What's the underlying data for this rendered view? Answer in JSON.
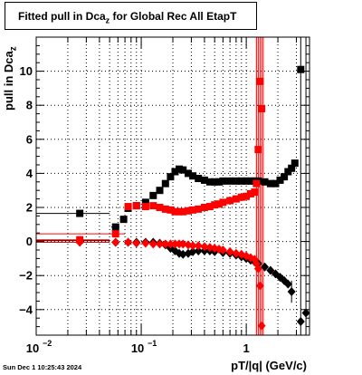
{
  "title": {
    "prefix": "Fitted pull in Dca",
    "subscript": "z",
    "suffix": " for Global Rec All EtapT"
  },
  "timestamp": "Sun Dec  1 10:25:43 2024",
  "chart_data": {
    "type": "scatter",
    "title": "Fitted pull in Dca_z for Global Rec All EtapT",
    "xlabel": "pT/|q| (GeV/c)",
    "ylabel_base": "pull in Dca",
    "ylabel_sub": "z",
    "ylabel": "pull in Dca_z",
    "x_scale": "log",
    "xlim": [
      0.01,
      4.0
    ],
    "ylim": [
      -5.5,
      12.0
    ],
    "grid": true,
    "x_ticks": [
      {
        "value": 0.01,
        "base": "10",
        "exp": "−2"
      },
      {
        "value": 0.1,
        "base": "10",
        "exp": "−1"
      },
      {
        "value": 1,
        "base": "1",
        "exp": ""
      }
    ],
    "y_ticks": [
      -4,
      -2,
      0,
      2,
      4,
      6,
      8,
      10
    ],
    "colors": {
      "black": "#000000",
      "red": "#ff0000"
    },
    "series": [
      {
        "color": "#000000",
        "marker": "square",
        "points": [
          [
            0.026,
            1.65
          ],
          [
            0.057,
            0.85
          ],
          [
            0.068,
            1.3
          ],
          [
            0.075,
            1.95
          ],
          [
            0.09,
            2.1
          ],
          [
            0.11,
            2.3
          ],
          [
            0.13,
            2.7
          ],
          [
            0.15,
            3.0
          ],
          [
            0.17,
            3.4
          ],
          [
            0.19,
            3.8
          ],
          [
            0.21,
            4.1
          ],
          [
            0.23,
            4.25
          ],
          [
            0.25,
            4.2
          ],
          [
            0.28,
            4.0
          ],
          [
            0.31,
            3.85
          ],
          [
            0.35,
            3.7
          ],
          [
            0.4,
            3.6
          ],
          [
            0.45,
            3.5
          ],
          [
            0.5,
            3.5
          ],
          [
            0.55,
            3.5
          ],
          [
            0.6,
            3.55
          ],
          [
            0.7,
            3.55
          ],
          [
            0.8,
            3.55
          ],
          [
            0.9,
            3.55
          ],
          [
            1.0,
            3.55
          ],
          [
            1.1,
            3.55
          ],
          [
            1.2,
            3.55
          ],
          [
            1.3,
            3.55
          ],
          [
            1.5,
            3.5
          ],
          [
            1.7,
            3.4
          ],
          [
            1.9,
            3.4
          ],
          [
            2.1,
            3.6
          ],
          [
            2.3,
            3.8
          ],
          [
            2.5,
            4.1
          ],
          [
            2.7,
            4.3
          ],
          [
            2.9,
            4.6
          ],
          [
            3.3,
            10.1
          ]
        ]
      },
      {
        "color": "#000000",
        "marker": "diamond",
        "points": [
          [
            0.026,
            0.05
          ],
          [
            0.057,
            -0.05
          ],
          [
            0.075,
            -0.05
          ],
          [
            0.09,
            -0.05
          ],
          [
            0.11,
            -0.05
          ],
          [
            0.13,
            -0.05
          ],
          [
            0.15,
            -0.1
          ],
          [
            0.17,
            -0.2
          ],
          [
            0.19,
            -0.4
          ],
          [
            0.21,
            -0.55
          ],
          [
            0.23,
            -0.7
          ],
          [
            0.25,
            -0.75
          ],
          [
            0.28,
            -0.7
          ],
          [
            0.31,
            -0.6
          ],
          [
            0.35,
            -0.55
          ],
          [
            0.4,
            -0.55
          ],
          [
            0.45,
            -0.55
          ],
          [
            0.5,
            -0.6
          ],
          [
            0.6,
            -0.65
          ],
          [
            0.7,
            -0.7
          ],
          [
            0.8,
            -0.8
          ],
          [
            0.9,
            -0.9
          ],
          [
            1.0,
            -1.0
          ],
          [
            1.1,
            -1.1
          ],
          [
            1.2,
            -1.2
          ],
          [
            1.3,
            -1.3
          ],
          [
            1.5,
            -1.5
          ],
          [
            1.7,
            -1.7
          ],
          [
            1.9,
            -1.9
          ],
          [
            2.1,
            -2.1
          ],
          [
            2.3,
            -2.3
          ],
          [
            2.5,
            -2.5
          ],
          [
            2.7,
            -2.95
          ],
          [
            3.3,
            -4.7
          ],
          [
            3.7,
            -4.2
          ]
        ]
      },
      {
        "color": "#ff0000",
        "marker": "square",
        "points": [
          [
            0.026,
            0.1
          ],
          [
            0.057,
            0.45
          ],
          [
            0.075,
            2.05
          ],
          [
            0.09,
            2.1
          ],
          [
            0.11,
            2.05
          ],
          [
            0.13,
            2.1
          ],
          [
            0.15,
            2.0
          ],
          [
            0.17,
            1.9
          ],
          [
            0.19,
            1.85
          ],
          [
            0.21,
            1.75
          ],
          [
            0.23,
            1.75
          ],
          [
            0.25,
            1.75
          ],
          [
            0.28,
            1.8
          ],
          [
            0.31,
            1.85
          ],
          [
            0.35,
            1.9
          ],
          [
            0.4,
            2.0
          ],
          [
            0.45,
            2.05
          ],
          [
            0.5,
            2.15
          ],
          [
            0.55,
            2.2
          ],
          [
            0.6,
            2.3
          ],
          [
            0.7,
            2.4
          ],
          [
            0.8,
            2.5
          ],
          [
            0.9,
            2.6
          ],
          [
            1.0,
            2.65
          ],
          [
            1.1,
            2.8
          ],
          [
            1.2,
            2.9
          ],
          [
            1.25,
            3.4
          ],
          [
            1.3,
            5.4
          ],
          [
            1.35,
            9.4
          ],
          [
            1.4,
            7.8
          ]
        ]
      },
      {
        "color": "#ff0000",
        "marker": "diamond",
        "points": [
          [
            0.026,
            -0.05
          ],
          [
            0.057,
            -0.05
          ],
          [
            0.075,
            -0.05
          ],
          [
            0.09,
            -0.1
          ],
          [
            0.11,
            -0.1
          ],
          [
            0.13,
            -0.15
          ],
          [
            0.15,
            -0.15
          ],
          [
            0.17,
            -0.15
          ],
          [
            0.19,
            -0.15
          ],
          [
            0.21,
            -0.15
          ],
          [
            0.23,
            -0.15
          ],
          [
            0.25,
            -0.15
          ],
          [
            0.28,
            -0.2
          ],
          [
            0.31,
            -0.25
          ],
          [
            0.35,
            -0.25
          ],
          [
            0.4,
            -0.3
          ],
          [
            0.45,
            -0.35
          ],
          [
            0.5,
            -0.4
          ],
          [
            0.55,
            -0.45
          ],
          [
            0.6,
            -0.5
          ],
          [
            0.7,
            -0.6
          ],
          [
            0.8,
            -0.7
          ],
          [
            0.9,
            -0.75
          ],
          [
            1.0,
            -0.85
          ],
          [
            1.1,
            -0.95
          ],
          [
            1.2,
            -1.05
          ],
          [
            1.25,
            -1.3
          ],
          [
            1.3,
            -1.6
          ],
          [
            1.35,
            -2.6
          ],
          [
            1.4,
            -4.95
          ]
        ]
      }
    ],
    "error_bars": [
      {
        "color": "#000000",
        "x": 0.026,
        "y": 1.65,
        "x_low": 0.009,
        "x_high": 0.05
      },
      {
        "color": "#000000",
        "x": 0.026,
        "y": 0.05,
        "x_low": 0.009,
        "x_high": 0.05
      },
      {
        "color": "#000000",
        "x": 0.057,
        "y": 0.85,
        "x_low": 0.052,
        "x_high": 0.062
      },
      {
        "color": "#000000",
        "x": 2.7,
        "y": -2.95,
        "y_low": -3.6,
        "y_high": -2.3
      },
      {
        "color": "#000000",
        "x": 3.3,
        "y": 10.1,
        "y_low": -5.5,
        "y_high": 12.0
      },
      {
        "color": "#000000",
        "x": 3.7,
        "y": -4.2,
        "y_low": -5.5,
        "y_high": 12.0
      },
      {
        "color": "#ff0000",
        "x": 0.026,
        "y": 0.1,
        "x_low": 0.009,
        "x_high": 0.05
      },
      {
        "color": "#ff0000",
        "x": 0.026,
        "y": 0.45,
        "x_low": 0.009,
        "x_high": 0.07
      },
      {
        "color": "#ff0000",
        "x": 0.026,
        "y": -0.05,
        "x_low": 0.009,
        "x_high": 0.05
      },
      {
        "color": "#ff0000",
        "x": 1.25,
        "y": 3.4,
        "y_low": -5.5,
        "y_high": 12.0
      },
      {
        "color": "#ff0000",
        "x": 1.3,
        "y": 5.4,
        "y_low": -5.5,
        "y_high": 12.0
      },
      {
        "color": "#ff0000",
        "x": 1.35,
        "y": 9.4,
        "y_low": -5.5,
        "y_high": 12.0
      },
      {
        "color": "#ff0000",
        "x": 1.4,
        "y": 7.8,
        "y_low": -5.5,
        "y_high": 12.0
      },
      {
        "color": "#ff0000",
        "x": 1.45,
        "y": 2.9,
        "y_low": -5.5,
        "y_high": 12.0
      }
    ]
  }
}
